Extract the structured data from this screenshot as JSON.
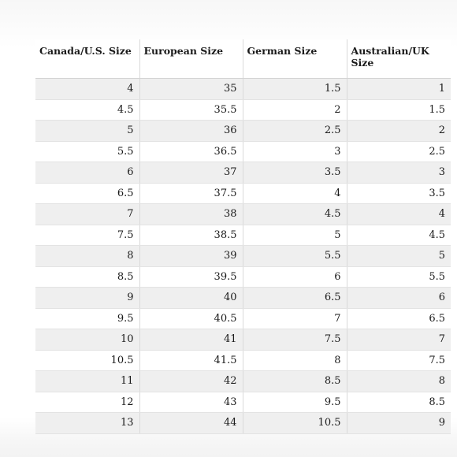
{
  "table": {
    "headers": [
      "Canada/U.S. Size",
      "European Size",
      "German Size",
      "Australian/UK Size"
    ],
    "rows": [
      [
        "4",
        "35",
        "1.5",
        "1"
      ],
      [
        "4.5",
        "35.5",
        "2",
        "1.5"
      ],
      [
        "5",
        "36",
        "2.5",
        "2"
      ],
      [
        "5.5",
        "36.5",
        "3",
        "2.5"
      ],
      [
        "6",
        "37",
        "3.5",
        "3"
      ],
      [
        "6.5",
        "37.5",
        "4",
        "3.5"
      ],
      [
        "7",
        "38",
        "4.5",
        "4"
      ],
      [
        "7.5",
        "38.5",
        "5",
        "4.5"
      ],
      [
        "8",
        "39",
        "5.5",
        "5"
      ],
      [
        "8.5",
        "39.5",
        "6",
        "5.5"
      ],
      [
        "9",
        "40",
        "6.5",
        "6"
      ],
      [
        "9.5",
        "40.5",
        "7",
        "6.5"
      ],
      [
        "10",
        "41",
        "7.5",
        "7"
      ],
      [
        "10.5",
        "41.5",
        "8",
        "7.5"
      ],
      [
        "11",
        "42",
        "8.5",
        "8"
      ],
      [
        "12",
        "43",
        "9.5",
        "8.5"
      ],
      [
        "13",
        "44",
        "10.5",
        "9"
      ]
    ]
  }
}
